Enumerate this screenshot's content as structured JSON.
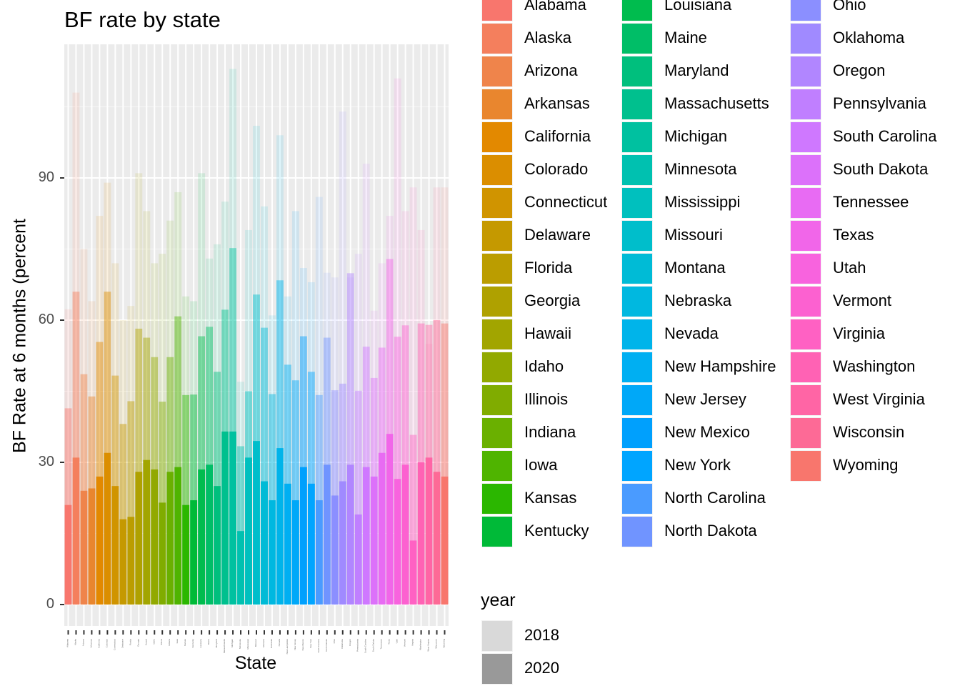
{
  "chart_data": {
    "type": "bar",
    "title": "BF rate by state",
    "xlabel": "State",
    "ylabel": "BF Rate at 6 months (percent",
    "ylim": [
      0,
      118
    ],
    "yticks": [
      0,
      30,
      60,
      90
    ],
    "grid": true,
    "legend_position": "right",
    "legend_fill_title": "",
    "legend_year_title": "year",
    "year_levels": [
      {
        "name": "2018",
        "color": "#d9d9d9"
      },
      {
        "name": "2020",
        "color": "#999999"
      }
    ],
    "states": [
      "Alabama",
      "Alaska",
      "Arizona",
      "Arkansas",
      "California",
      "Colorado",
      "Connecticut",
      "Delaware",
      "Florida",
      "Georgia",
      "Hawaii",
      "Idaho",
      "Illinois",
      "Indiana",
      "Iowa",
      "Kansas",
      "Kentucky",
      "Louisiana",
      "Maine",
      "Maryland",
      "Massachusetts",
      "Michigan",
      "Minnesota",
      "Mississippi",
      "Missouri",
      "Montana",
      "Nebraska",
      "Nevada",
      "New Hampshire",
      "New Jersey",
      "New Mexico",
      "New York",
      "North Carolina",
      "North Dakota",
      "Ohio",
      "Oklahoma",
      "Oregon",
      "Pennsylvania",
      "South Carolina",
      "South Dakota",
      "Tennessee",
      "Texas",
      "Utah",
      "Vermont",
      "Virginia",
      "Washington",
      "West Virginia",
      "Wisconsin",
      "Wyoming"
    ],
    "colors": [
      "#F8766D",
      "#F47F5D",
      "#EF844B",
      "#E9862E",
      "#E38900",
      "#DB8E00",
      "#D09400",
      "#C59900",
      "#BB9D00",
      "#AFA100",
      "#A2A500",
      "#92A900",
      "#80AC00",
      "#6AB000",
      "#4FB400",
      "#2BB700",
      "#00BA38",
      "#00BC4E",
      "#00BE67",
      "#00BF7D",
      "#00C08E",
      "#00C1A0",
      "#00C1B0",
      "#00C0BE",
      "#00BECB",
      "#00BBD6",
      "#00B8E0",
      "#00B4EA",
      "#00AFF2",
      "#00A8F8",
      "#00A0FD",
      "#00A5FF",
      "#4A9BFF",
      "#7094FF",
      "#8B8FFF",
      "#A08AFF",
      "#B186FF",
      "#C07FFF",
      "#CF78FF",
      "#DC71FA",
      "#E86BF3",
      "#F166E9",
      "#F863DE",
      "#FC61D0",
      "#FF61C3",
      "#FF62B4",
      "#FF65A5",
      "#FD6A96",
      "#F8766D"
    ],
    "series": [
      {
        "name": "2018",
        "values": [
          62.3,
          108,
          75,
          64,
          82,
          89,
          72,
          60,
          63,
          91,
          83,
          72,
          74,
          81,
          87,
          65,
          64,
          91,
          73,
          76,
          85,
          113,
          47,
          79,
          101,
          84,
          61,
          99,
          65,
          83,
          71,
          68,
          86,
          70,
          69,
          104,
          69,
          74,
          93,
          62,
          72,
          82,
          111,
          83,
          88,
          79,
          55,
          88,
          88
        ]
      },
      {
        "name": "2020",
        "values": [
          41.4,
          66,
          48.6,
          43.9,
          55.4,
          66,
          48.3,
          38.1,
          42.9,
          58.2,
          56.3,
          52.2,
          42.8,
          52.2,
          60.8,
          44.2,
          44.3,
          56.6,
          58.6,
          49.1,
          62.2,
          75.2,
          33.4,
          45,
          65.4,
          58.4,
          44.4,
          68.4,
          50.6,
          47.3,
          56.6,
          49.1,
          44.2,
          56.3,
          45.2,
          46.6,
          69.9,
          45.1,
          54.4,
          47.8,
          54.2,
          72.9,
          56.5,
          58.9,
          35.8,
          59.3,
          59,
          60,
          59.3
        ]
      }
    ],
    "stacked_estimate": [
      {
        "name": "2020",
        "values": [
          21,
          31,
          24,
          24.5,
          27,
          32,
          25,
          18,
          18.5,
          28,
          30.5,
          28.5,
          21.5,
          28,
          29,
          21,
          22,
          28.5,
          29.5,
          25,
          36.5,
          36.5,
          15.5,
          31,
          34.5,
          26,
          22,
          33,
          25.5,
          22,
          29,
          25.5,
          22,
          29.5,
          23,
          26,
          29.5,
          19,
          29,
          27,
          32,
          36,
          26.5,
          29.5,
          13.5,
          30,
          31,
          28,
          27
        ]
      }
    ]
  }
}
